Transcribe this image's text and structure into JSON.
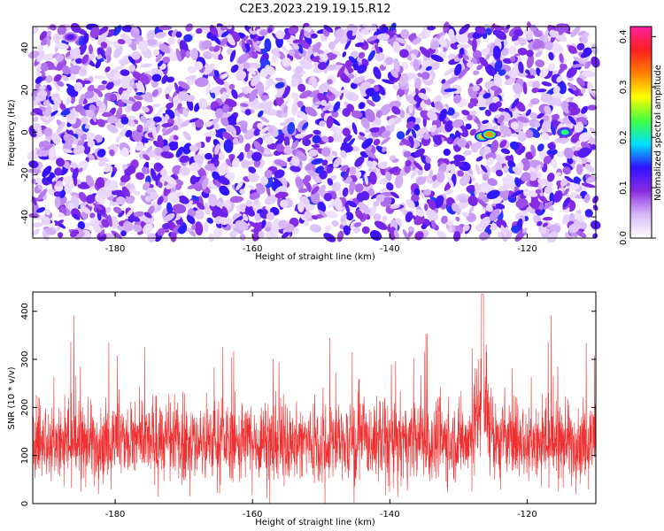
{
  "title": "C2E3.2023.219.19.15.R12",
  "chart_data": [
    {
      "type": "heatmap",
      "xlabel": "Height of straight line (km)",
      "ylabel": "Frequency (Hz)",
      "xlim": [
        -192,
        -110
      ],
      "ylim": [
        -50,
        50
      ],
      "xticks": [
        -180,
        -160,
        -140,
        -120
      ],
      "yticks": [
        -40,
        -20,
        0,
        20,
        40
      ],
      "grid": false,
      "colorbar": {
        "label": "Normalized spectral amplitude",
        "range": [
          0,
          0.42
        ],
        "ticks": [
          0.0,
          0.1,
          0.2,
          0.3,
          0.4
        ],
        "tick_labels": [
          "0.0",
          "0.1",
          "0.2",
          "0.3",
          "0.4"
        ],
        "colors": [
          "#ffffff",
          "#d8b8f8",
          "#8a2be2",
          "#3010ff",
          "#00e0ff",
          "#40ff40",
          "#ffff00",
          "#ff8000",
          "#ff2020",
          "#ff20a0"
        ]
      },
      "hotspots": [
        {
          "x": -126.5,
          "y": -2,
          "amplitude": 0.3
        },
        {
          "x": -125.5,
          "y": -1,
          "amplitude": 0.32
        },
        {
          "x": -114.5,
          "y": 0,
          "amplitude": 0.22
        },
        {
          "x": -186.5,
          "y": 45,
          "amplitude": 0.12
        }
      ]
    },
    {
      "type": "line",
      "xlabel": "Height of straight line (km)",
      "ylabel": "SNR (10 * v/v)",
      "xlim": [
        -192,
        -110
      ],
      "ylim": [
        0,
        440
      ],
      "xticks": [
        -180,
        -160,
        -140,
        -120
      ],
      "yticks": [
        0,
        100,
        200,
        300,
        400
      ],
      "grid": false,
      "series": [
        {
          "mean": 130,
          "spread": 60,
          "peak": 435,
          "peak_x": -126.5,
          "color": "#f03030"
        }
      ]
    }
  ]
}
